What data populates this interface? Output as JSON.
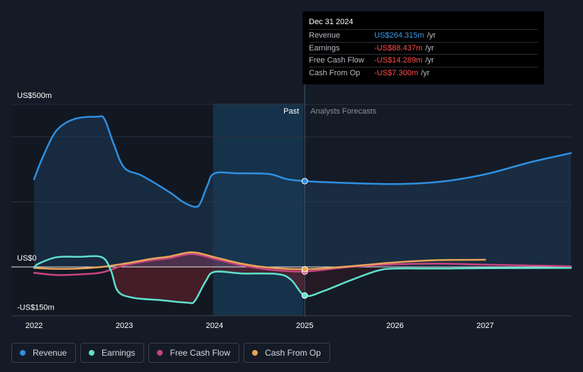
{
  "tooltip": {
    "date": "Dec 31 2024",
    "rows": [
      {
        "label": "Revenue",
        "value": "US$264.315m",
        "unit": "/yr",
        "color": "#3b9be6"
      },
      {
        "label": "Earnings",
        "value": "-US$88.437m",
        "unit": "/yr",
        "color": "#ff4b4b"
      },
      {
        "label": "Free Cash Flow",
        "value": "-US$14.289m",
        "unit": "/yr",
        "color": "#ff4b4b"
      },
      {
        "label": "Cash From Op",
        "value": "-US$7.300m",
        "unit": "/yr",
        "color": "#ff4b4b"
      }
    ]
  },
  "legend": [
    {
      "label": "Revenue",
      "color": "#2f8fe0"
    },
    {
      "label": "Earnings",
      "color": "#5fe0cd"
    },
    {
      "label": "Free Cash Flow",
      "color": "#c7457f"
    },
    {
      "label": "Cash From Op",
      "color": "#e8a55a"
    }
  ],
  "regions": {
    "past_label": "Past",
    "forecast_label": "Analysts Forecasts"
  },
  "chart_data": {
    "type": "line",
    "y_unit": "US$ millions",
    "ylim": [
      -150,
      500
    ],
    "y_tick_labels": [
      {
        "value": 500,
        "label": "US$500m"
      },
      {
        "value": 0,
        "label": "US$0"
      },
      {
        "value": -150,
        "label": "-US$150m"
      }
    ],
    "xlim": [
      2022,
      2027.95
    ],
    "x_ticks": [
      2022,
      2023,
      2024,
      2025,
      2026,
      2027
    ],
    "x_tick_labels": [
      "2022",
      "2023",
      "2024",
      "2025",
      "2026",
      "2027"
    ],
    "past_end": 2025,
    "highlight_start": 2024,
    "marker_x": 2025,
    "series": [
      {
        "name": "Revenue",
        "color": "#2f8fe0",
        "fill": "#1e3a57",
        "points": [
          [
            2022.0,
            270
          ],
          [
            2022.1,
            340
          ],
          [
            2022.25,
            420
          ],
          [
            2022.45,
            455
          ],
          [
            2022.7,
            462
          ],
          [
            2022.78,
            455
          ],
          [
            2022.88,
            380
          ],
          [
            2023.0,
            305
          ],
          [
            2023.2,
            280
          ],
          [
            2023.5,
            230
          ],
          [
            2023.65,
            200
          ],
          [
            2023.78,
            185
          ],
          [
            2023.84,
            195
          ],
          [
            2023.92,
            250
          ],
          [
            2024.0,
            288
          ],
          [
            2024.25,
            288
          ],
          [
            2024.6,
            286
          ],
          [
            2024.8,
            270
          ],
          [
            2025.0,
            264
          ],
          [
            2025.4,
            259
          ],
          [
            2026.0,
            255
          ],
          [
            2026.5,
            262
          ],
          [
            2027.0,
            285
          ],
          [
            2027.5,
            322
          ],
          [
            2027.95,
            350
          ]
        ]
      },
      {
        "name": "Earnings",
        "color": "#5fe0cd",
        "fill": "#5a1f2a",
        "points": [
          [
            2022.0,
            -2
          ],
          [
            2022.05,
            10
          ],
          [
            2022.25,
            30
          ],
          [
            2022.5,
            31
          ],
          [
            2022.75,
            30
          ],
          [
            2022.85,
            -10
          ],
          [
            2022.93,
            -75
          ],
          [
            2023.1,
            -95
          ],
          [
            2023.4,
            -102
          ],
          [
            2023.7,
            -110
          ],
          [
            2023.78,
            -105
          ],
          [
            2023.9,
            -45
          ],
          [
            2024.0,
            -15
          ],
          [
            2024.3,
            -20
          ],
          [
            2024.7,
            -22
          ],
          [
            2024.85,
            -40
          ],
          [
            2025.0,
            -88
          ],
          [
            2025.2,
            -75
          ],
          [
            2025.5,
            -42
          ],
          [
            2025.8,
            -12
          ],
          [
            2026.0,
            -5
          ],
          [
            2026.5,
            -5
          ],
          [
            2027.0,
            -4
          ],
          [
            2027.95,
            -3
          ]
        ]
      },
      {
        "name": "Free Cash Flow",
        "color": "#c7457f",
        "fill": "#4a2438",
        "points": [
          [
            2022.0,
            -18
          ],
          [
            2022.25,
            -25
          ],
          [
            2022.5,
            -23
          ],
          [
            2022.75,
            -17
          ],
          [
            2023.0,
            5
          ],
          [
            2023.3,
            20
          ],
          [
            2023.5,
            27
          ],
          [
            2023.75,
            40
          ],
          [
            2024.0,
            25
          ],
          [
            2024.3,
            5
          ],
          [
            2024.6,
            -8
          ],
          [
            2025.0,
            -14
          ],
          [
            2025.5,
            0
          ],
          [
            2026.0,
            8
          ],
          [
            2026.5,
            10
          ],
          [
            2027.0,
            7
          ],
          [
            2027.95,
            2
          ]
        ]
      },
      {
        "name": "Cash From Op",
        "color": "#e8a55a",
        "points": [
          [
            2022.0,
            -3
          ],
          [
            2022.25,
            -6
          ],
          [
            2022.5,
            -5
          ],
          [
            2022.75,
            0
          ],
          [
            2023.0,
            10
          ],
          [
            2023.3,
            25
          ],
          [
            2023.5,
            32
          ],
          [
            2023.75,
            45
          ],
          [
            2024.0,
            30
          ],
          [
            2024.3,
            10
          ],
          [
            2024.6,
            -2
          ],
          [
            2025.0,
            -7
          ],
          [
            2025.5,
            2
          ],
          [
            2026.0,
            14
          ],
          [
            2026.5,
            21
          ],
          [
            2027.0,
            22
          ]
        ]
      }
    ]
  }
}
